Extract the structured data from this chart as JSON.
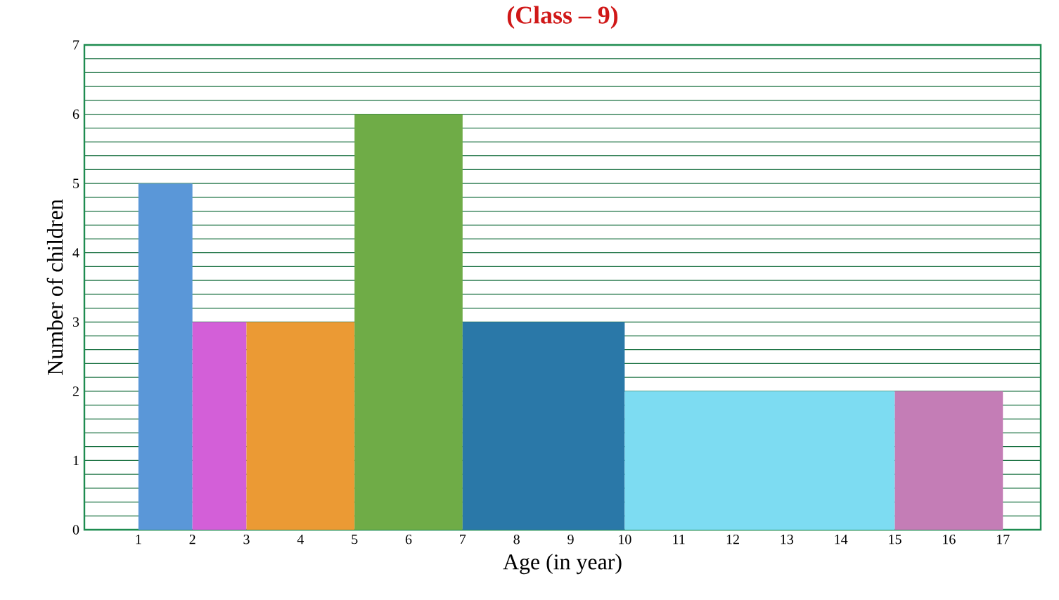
{
  "chart_data": {
    "type": "histogram",
    "title": "(Class – 9)",
    "xlabel": "Age (in year)",
    "ylabel": "Number of children",
    "bins": [
      1,
      2,
      3,
      5,
      7,
      10,
      15,
      17
    ],
    "values": [
      5,
      3,
      3,
      6,
      3,
      2,
      2
    ],
    "colors": [
      "#5a97d8",
      "#d35fd8",
      "#eb9a34",
      "#6fac47",
      "#2a78a8",
      "#7ddcf2",
      "#c47db6"
    ],
    "xlim": [
      0,
      17.7
    ],
    "ylim": [
      0,
      7
    ],
    "xticks": [
      1,
      2,
      3,
      4,
      5,
      6,
      7,
      8,
      9,
      10,
      11,
      12,
      13,
      14,
      15,
      16,
      17
    ],
    "yticks": [
      0,
      {
        "value": 0.2,
        "label": null
      },
      {
        "value": 0.4,
        "label": null
      },
      {
        "value": 0.6,
        "label": null
      },
      {
        "value": 0.8,
        "label": null
      },
      1,
      {
        "value": 1.2,
        "label": null
      },
      {
        "value": 1.4,
        "label": null
      },
      {
        "value": 1.6,
        "label": null
      },
      {
        "value": 1.8,
        "label": null
      },
      2,
      {
        "value": 2.2,
        "label": null
      },
      {
        "value": 2.4,
        "label": null
      },
      {
        "value": 2.6,
        "label": null
      },
      {
        "value": 2.8,
        "label": null
      },
      3,
      {
        "value": 3.2,
        "label": null
      },
      {
        "value": 3.4,
        "label": null
      },
      {
        "value": 3.6,
        "label": null
      },
      {
        "value": 3.8,
        "label": null
      },
      4,
      {
        "value": 4.2,
        "label": null
      },
      {
        "value": 4.4,
        "label": null
      },
      {
        "value": 4.6,
        "label": null
      },
      {
        "value": 4.8,
        "label": null
      },
      5,
      {
        "value": 5.2,
        "label": null
      },
      {
        "value": 5.4,
        "label": null
      },
      {
        "value": 5.6,
        "label": null
      },
      {
        "value": 5.8,
        "label": null
      },
      6,
      {
        "value": 6.2,
        "label": null
      },
      {
        "value": 6.4,
        "label": null
      },
      {
        "value": 6.6,
        "label": null
      },
      {
        "value": 6.8,
        "label": null
      },
      7
    ],
    "grid": "y"
  }
}
